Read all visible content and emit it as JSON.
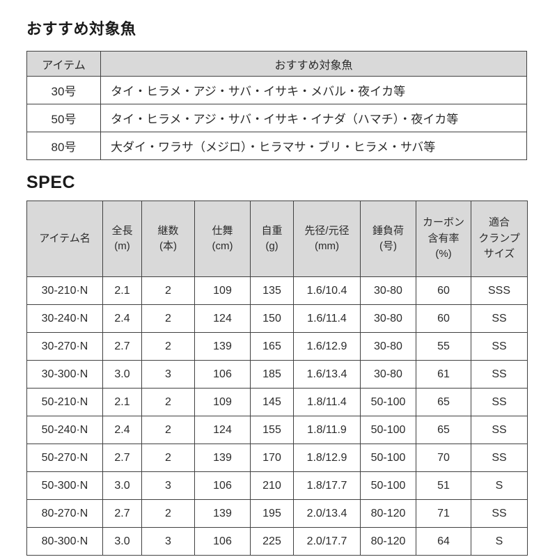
{
  "colors": {
    "header_bg": "#d9d9d9",
    "border": "#404040",
    "text": "#2b2b2b"
  },
  "recommended_fish": {
    "title": "おすすめ対象魚",
    "columns": [
      "アイテム",
      "おすすめ対象魚"
    ],
    "rows": [
      {
        "item": "30号",
        "fish": "タイ・ヒラメ・アジ・サバ・イサキ・メバル・夜イカ等"
      },
      {
        "item": "50号",
        "fish": "タイ・ヒラメ・アジ・サバ・イサキ・イナダ（ハマチ）・夜イカ等"
      },
      {
        "item": "80号",
        "fish": "大ダイ・ワラサ（メジロ）・ヒラマサ・ブリ・ヒラメ・サバ等"
      }
    ]
  },
  "spec": {
    "title": "SPEC",
    "columns": [
      [
        "アイテム名"
      ],
      [
        "全長",
        "(m)"
      ],
      [
        "継数",
        "(本)"
      ],
      [
        "仕舞",
        "(cm)"
      ],
      [
        "自重",
        "(g)"
      ],
      [
        "先径/元径",
        "(mm)"
      ],
      [
        "錘負荷",
        "(号)"
      ],
      [
        "カーボン",
        "含有率",
        "(%)"
      ],
      [
        "適合",
        "クランプ",
        "サイズ"
      ]
    ],
    "rows": [
      [
        "30-210·N",
        "2.1",
        "2",
        "109",
        "135",
        "1.6/10.4",
        "30-80",
        "60",
        "SSS"
      ],
      [
        "30-240·N",
        "2.4",
        "2",
        "124",
        "150",
        "1.6/11.4",
        "30-80",
        "60",
        "SS"
      ],
      [
        "30-270·N",
        "2.7",
        "2",
        "139",
        "165",
        "1.6/12.9",
        "30-80",
        "55",
        "SS"
      ],
      [
        "30-300·N",
        "3.0",
        "3",
        "106",
        "185",
        "1.6/13.4",
        "30-80",
        "61",
        "SS"
      ],
      [
        "50-210·N",
        "2.1",
        "2",
        "109",
        "145",
        "1.8/11.4",
        "50-100",
        "65",
        "SS"
      ],
      [
        "50-240·N",
        "2.4",
        "2",
        "124",
        "155",
        "1.8/11.9",
        "50-100",
        "65",
        "SS"
      ],
      [
        "50-270·N",
        "2.7",
        "2",
        "139",
        "170",
        "1.8/12.9",
        "50-100",
        "70",
        "SS"
      ],
      [
        "50-300·N",
        "3.0",
        "3",
        "106",
        "210",
        "1.8/17.7",
        "50-100",
        "51",
        "S"
      ],
      [
        "80-270·N",
        "2.7",
        "2",
        "139",
        "195",
        "2.0/13.4",
        "80-120",
        "71",
        "SS"
      ],
      [
        "80-300·N",
        "3.0",
        "3",
        "106",
        "225",
        "2.0/17.7",
        "80-120",
        "64",
        "S"
      ]
    ]
  }
}
